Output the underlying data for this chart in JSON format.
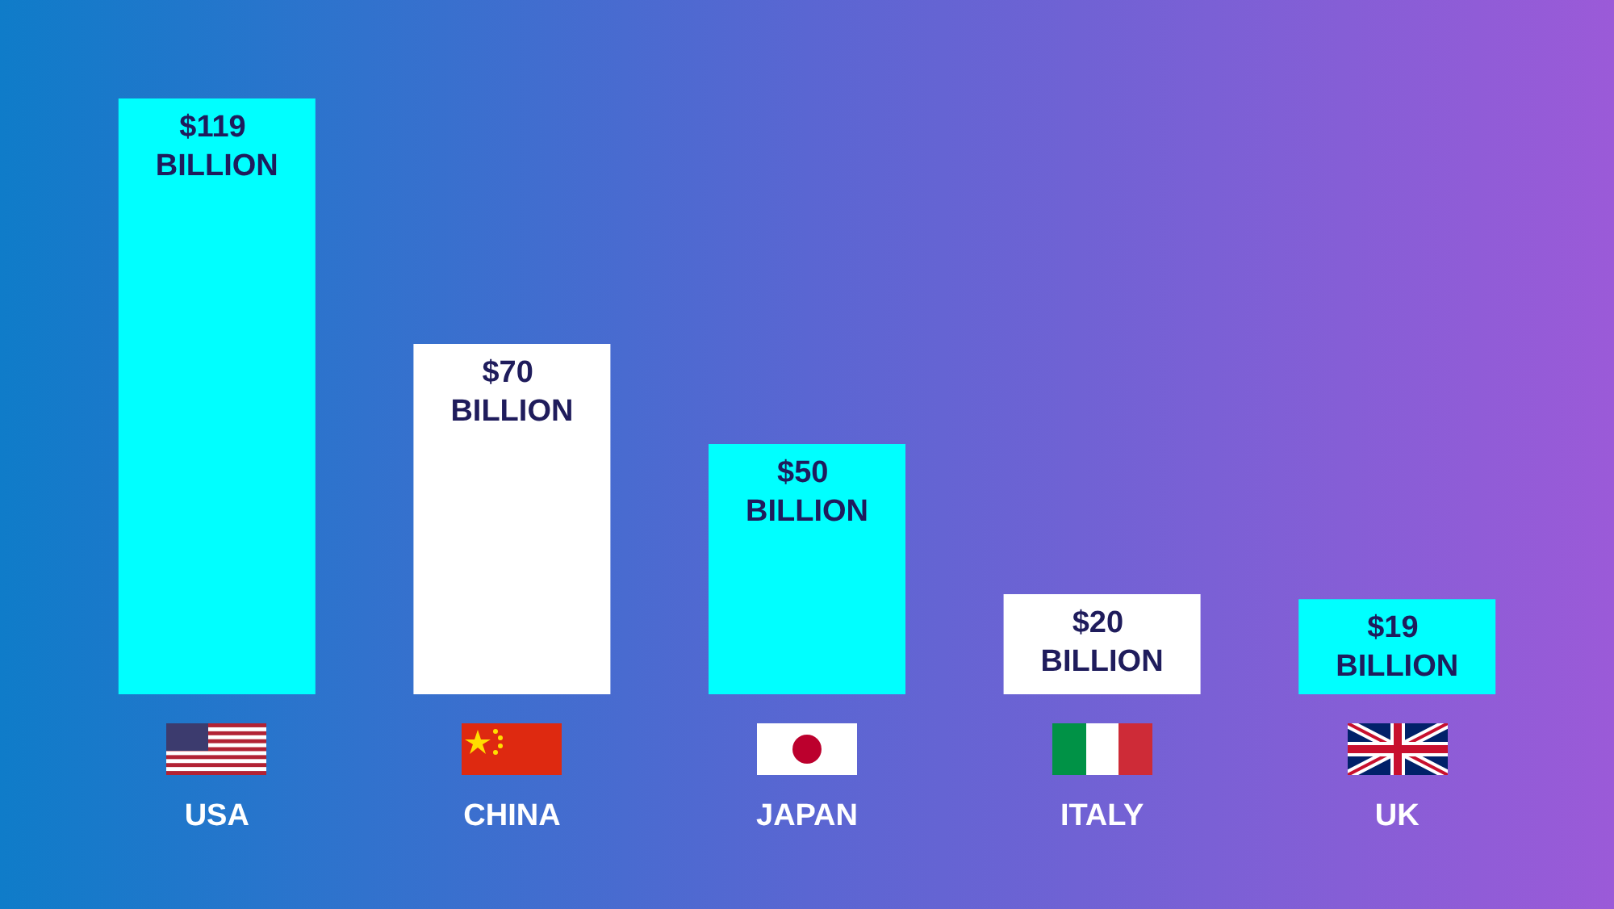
{
  "chart_data": {
    "type": "bar",
    "categories": [
      "USA",
      "CHINA",
      "JAPAN",
      "ITALY",
      "UK"
    ],
    "values": [
      119,
      70,
      50,
      20,
      19
    ],
    "colors": [
      "#00ffff",
      "#ffffff",
      "#00ffff",
      "#ffffff",
      "#00ffff"
    ],
    "value_labels": [
      "$119 BILLION",
      "$70 BILLION",
      "$50 BILLION",
      "$20 BILLION",
      "$19 BILLION"
    ]
  }
}
